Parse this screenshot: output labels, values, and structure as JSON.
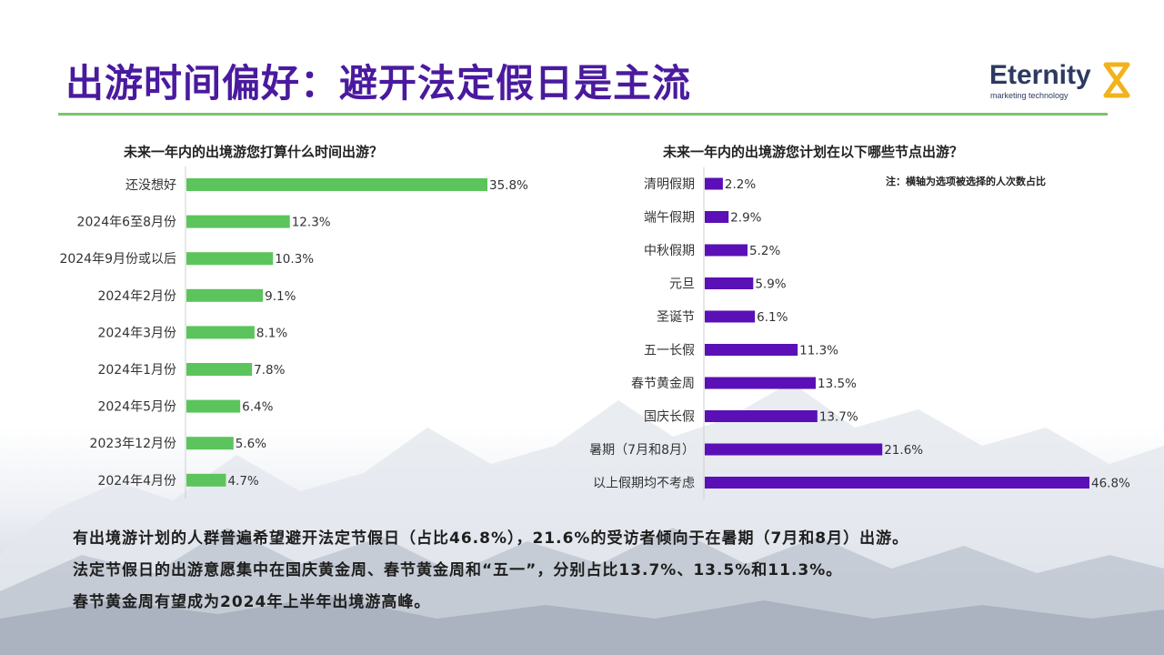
{
  "title": "出游时间偏好：避开法定假日是主流",
  "logo": {
    "name": "Eternity",
    "tagline": "marketing technology",
    "accent": "#f2b21b",
    "color": "#2c3a60"
  },
  "note": "注：横轴为选项被选择的人次数占比",
  "colors": {
    "title": "#4a1a9e",
    "left_bar": "#5cc45c",
    "right_bar": "#5b0fb7",
    "rule": "#7cc36a"
  },
  "chart_data": [
    {
      "type": "bar",
      "orientation": "horizontal",
      "title": "未来一年内的出境游您打算什么时间出游？",
      "categories": [
        "还没想好",
        "2024年6至8月份",
        "2024年9月份或以后",
        "2024年2月份",
        "2024年3月份",
        "2024年1月份",
        "2024年5月份",
        "2023年12月份",
        "2024年4月份"
      ],
      "values": [
        35.8,
        12.3,
        10.3,
        9.1,
        8.1,
        7.8,
        6.4,
        5.6,
        4.7
      ],
      "labels": [
        "35.8%",
        "12.3%",
        "10.3%",
        "9.1%",
        "8.1%",
        "7.8%",
        "6.4%",
        "5.6%",
        "4.7%"
      ],
      "xlim": [
        0,
        35.8
      ],
      "grid": false
    },
    {
      "type": "bar",
      "orientation": "horizontal",
      "title": "未来一年内的出境游您计划在以下哪些节点出游？",
      "categories": [
        "清明假期",
        "端午假期",
        "中秋假期",
        "元旦",
        "圣诞节",
        "五一长假",
        "春节黄金周",
        "国庆长假",
        "暑期（7月和8月）",
        "以上假期均不考虑"
      ],
      "values": [
        2.2,
        2.9,
        5.2,
        5.9,
        6.1,
        11.3,
        13.5,
        13.7,
        21.6,
        46.8
      ],
      "labels": [
        "2.2%",
        "2.9%",
        "5.2%",
        "5.9%",
        "6.1%",
        "11.3%",
        "13.5%",
        "13.7%",
        "21.6%",
        "46.8%"
      ],
      "xlim": [
        0,
        46.8
      ],
      "grid": false
    }
  ],
  "summary": [
    "有出境游计划的人群普遍希望避开法定节假日（占比46.8%），21.6%的受访者倾向于在暑期（7月和8月）出游。",
    "法定节假日的出游意愿集中在国庆黄金周、春节黄金周和“五一”，分别占比13.7%、13.5%和11.3%。",
    "春节黄金周有望成为2024年上半年出境游高峰。"
  ]
}
